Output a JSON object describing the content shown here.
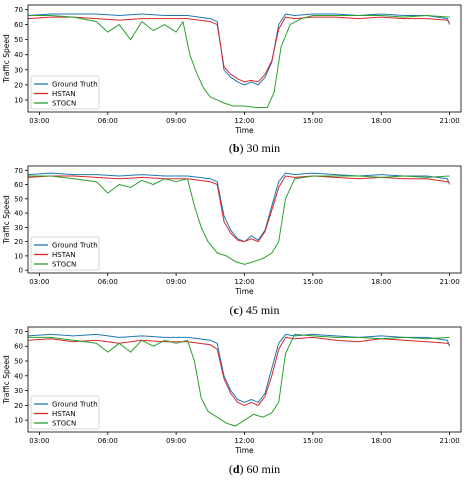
{
  "chart_data": [
    {
      "type": "line",
      "caption_letter": "b",
      "caption_text": " 30 min",
      "ylabel": "Traffic Speed",
      "xlabel": "Time",
      "xticks": [
        "03:00",
        "06:00",
        "06:00",
        "09:00",
        "12:00",
        "15:00",
        "18:00",
        "21:00"
      ],
      "yticks": [
        10,
        20,
        30,
        40,
        50,
        60,
        70
      ],
      "xlim": [
        2.5,
        21.5
      ],
      "ylim": [
        2,
        73
      ],
      "legend_position": "lower-left",
      "series": [
        {
          "name": "Ground Truth",
          "color": "#1f77b4",
          "x": [
            2.5,
            3.5,
            4.5,
            5.5,
            6.5,
            7.5,
            8.5,
            9.5,
            10.0,
            10.5,
            10.8,
            11.1,
            11.4,
            11.7,
            12.0,
            12.3,
            12.6,
            12.9,
            13.2,
            13.5,
            13.8,
            14.2,
            15,
            16,
            17,
            18,
            19,
            20,
            20.9,
            21
          ],
          "y": [
            66,
            67,
            67,
            67,
            66,
            67,
            66,
            66,
            65,
            64,
            62,
            30,
            25,
            22,
            20,
            22,
            20,
            25,
            35,
            60,
            67,
            66,
            67,
            67,
            66,
            67,
            66,
            66,
            64,
            60
          ]
        },
        {
          "name": "HSTAN",
          "color": "#d62728",
          "x": [
            2.5,
            3.5,
            4.5,
            5.5,
            6.5,
            7.5,
            8.5,
            9.5,
            10.0,
            10.5,
            10.8,
            11.1,
            11.4,
            11.7,
            12.0,
            12.3,
            12.6,
            12.9,
            13.2,
            13.5,
            13.8,
            14.2,
            15,
            16,
            17,
            18,
            19,
            20,
            20.9,
            21
          ],
          "y": [
            64,
            65,
            65,
            64,
            63,
            64,
            64,
            64,
            63,
            62,
            60,
            32,
            27,
            24,
            22,
            23,
            22,
            27,
            36,
            57,
            65,
            64,
            65,
            65,
            64,
            65,
            64,
            64,
            63,
            61
          ]
        },
        {
          "name": "STGCN",
          "color": "#2ca02c",
          "x": [
            2.5,
            3.5,
            4.5,
            5.5,
            6.0,
            6.5,
            7.0,
            7.5,
            8.0,
            8.5,
            9.0,
            9.3,
            9.6,
            9.9,
            10.2,
            10.5,
            10.8,
            11.1,
            11.5,
            12.0,
            12.5,
            13.0,
            13.3,
            13.6,
            14.0,
            14.5,
            15,
            16,
            17,
            18,
            19,
            20,
            21
          ],
          "y": [
            66,
            66,
            65,
            62,
            55,
            60,
            50,
            62,
            56,
            60,
            55,
            62,
            40,
            28,
            18,
            12,
            10,
            8,
            6,
            6,
            5,
            5,
            15,
            45,
            60,
            64,
            66,
            66,
            66,
            66,
            65,
            66,
            65
          ]
        }
      ]
    },
    {
      "type": "line",
      "caption_letter": "c",
      "caption_text": " 45 min",
      "ylabel": "Traffic Speed",
      "xlabel": "Time",
      "xticks": [
        "03:00",
        "06:00",
        "06:00",
        "09:00",
        "12:00",
        "15:00",
        "18:00",
        "21:00"
      ],
      "yticks": [
        0,
        10,
        20,
        30,
        40,
        50,
        60,
        70
      ],
      "xlim": [
        2.5,
        21.5
      ],
      "ylim": [
        -2,
        73
      ],
      "legend_position": "lower-left",
      "series": [
        {
          "name": "Ground Truth",
          "color": "#1f77b4",
          "x": [
            2.5,
            3.5,
            4.5,
            5.5,
            6.5,
            7.5,
            8.5,
            9.5,
            10.0,
            10.5,
            10.8,
            11.1,
            11.4,
            11.7,
            12.0,
            12.3,
            12.6,
            12.9,
            13.2,
            13.5,
            13.8,
            14.2,
            15,
            16,
            17,
            18,
            19,
            20,
            20.9,
            21
          ],
          "y": [
            67,
            68,
            67,
            67,
            66,
            67,
            66,
            66,
            65,
            64,
            62,
            38,
            28,
            22,
            20,
            24,
            21,
            28,
            45,
            62,
            68,
            67,
            68,
            67,
            66,
            67,
            66,
            66,
            64,
            60
          ]
        },
        {
          "name": "HSTAN",
          "color": "#d62728",
          "x": [
            2.5,
            3.5,
            4.5,
            5.5,
            6.5,
            7.5,
            8.5,
            9.5,
            10.0,
            10.5,
            10.8,
            11.1,
            11.4,
            11.7,
            12.0,
            12.3,
            12.6,
            12.9,
            13.2,
            13.5,
            13.8,
            14.2,
            15,
            16,
            17,
            18,
            19,
            20,
            20.9,
            21
          ],
          "y": [
            65,
            66,
            66,
            65,
            64,
            65,
            64,
            64,
            63,
            62,
            60,
            34,
            26,
            21,
            20,
            22,
            20,
            27,
            42,
            58,
            66,
            65,
            66,
            65,
            64,
            65,
            64,
            64,
            62,
            61
          ]
        },
        {
          "name": "STGCN",
          "color": "#2ca02c",
          "x": [
            2.5,
            3.5,
            4.5,
            5.5,
            6.0,
            6.5,
            7.0,
            7.5,
            8.0,
            8.5,
            9.0,
            9.5,
            9.8,
            10.1,
            10.4,
            10.8,
            11.2,
            11.6,
            12.0,
            12.4,
            12.8,
            13.2,
            13.5,
            13.8,
            14.2,
            15,
            16,
            17,
            18,
            19,
            20,
            21
          ],
          "y": [
            66,
            66,
            64,
            62,
            54,
            60,
            58,
            63,
            60,
            64,
            62,
            64,
            45,
            30,
            20,
            12,
            10,
            6,
            4,
            6,
            8,
            12,
            20,
            50,
            64,
            66,
            66,
            66,
            65,
            66,
            65,
            66
          ]
        }
      ]
    },
    {
      "type": "line",
      "caption_letter": "d",
      "caption_text": " 60 min",
      "ylabel": "Traffic Speed",
      "xlabel": "Time",
      "xticks": [
        "03:00",
        "06:00",
        "06:00",
        "09:00",
        "12:00",
        "15:00",
        "18:00",
        "21:00"
      ],
      "yticks": [
        10,
        20,
        30,
        40,
        50,
        60,
        70
      ],
      "xlim": [
        2.5,
        21.5
      ],
      "ylim": [
        2,
        73
      ],
      "legend_position": "lower-left",
      "series": [
        {
          "name": "Ground Truth",
          "color": "#1f77b4",
          "x": [
            2.5,
            3.5,
            4.5,
            5.5,
            6.5,
            7.5,
            8.5,
            9.5,
            10.0,
            10.5,
            10.8,
            11.1,
            11.4,
            11.7,
            12.0,
            12.3,
            12.6,
            12.9,
            13.2,
            13.5,
            13.8,
            14.2,
            15,
            16,
            17,
            18,
            19,
            20,
            20.9,
            21
          ],
          "y": [
            67,
            68,
            67,
            68,
            66,
            67,
            66,
            66,
            65,
            64,
            62,
            40,
            30,
            24,
            22,
            24,
            22,
            28,
            45,
            62,
            68,
            67,
            68,
            67,
            66,
            67,
            66,
            66,
            64,
            60
          ]
        },
        {
          "name": "HSTAN",
          "color": "#d62728",
          "x": [
            2.5,
            3.5,
            4.5,
            5.5,
            6.5,
            7.5,
            8.5,
            9.5,
            10.0,
            10.5,
            10.8,
            11.1,
            11.4,
            11.7,
            12.0,
            12.3,
            12.6,
            12.9,
            13.2,
            13.5,
            13.8,
            14.2,
            15,
            16,
            17,
            18,
            19,
            20,
            20.9,
            21
          ],
          "y": [
            64,
            65,
            63,
            64,
            62,
            64,
            63,
            63,
            62,
            61,
            58,
            38,
            28,
            22,
            20,
            22,
            20,
            26,
            40,
            58,
            66,
            65,
            66,
            64,
            63,
            65,
            64,
            63,
            62,
            61
          ]
        },
        {
          "name": "STGCN",
          "color": "#2ca02c",
          "x": [
            2.5,
            3.5,
            4.5,
            5.5,
            6.0,
            6.5,
            7.0,
            7.5,
            8.0,
            8.5,
            9.0,
            9.5,
            9.8,
            10.1,
            10.4,
            10.8,
            11.2,
            11.6,
            12.0,
            12.4,
            12.8,
            13.2,
            13.5,
            13.8,
            14.2,
            15,
            16,
            17,
            18,
            19,
            20,
            21
          ],
          "y": [
            66,
            66,
            64,
            62,
            56,
            62,
            56,
            64,
            60,
            64,
            62,
            64,
            50,
            25,
            16,
            12,
            8,
            6,
            10,
            14,
            12,
            15,
            22,
            55,
            68,
            67,
            66,
            66,
            65,
            66,
            65,
            66
          ]
        }
      ]
    }
  ]
}
